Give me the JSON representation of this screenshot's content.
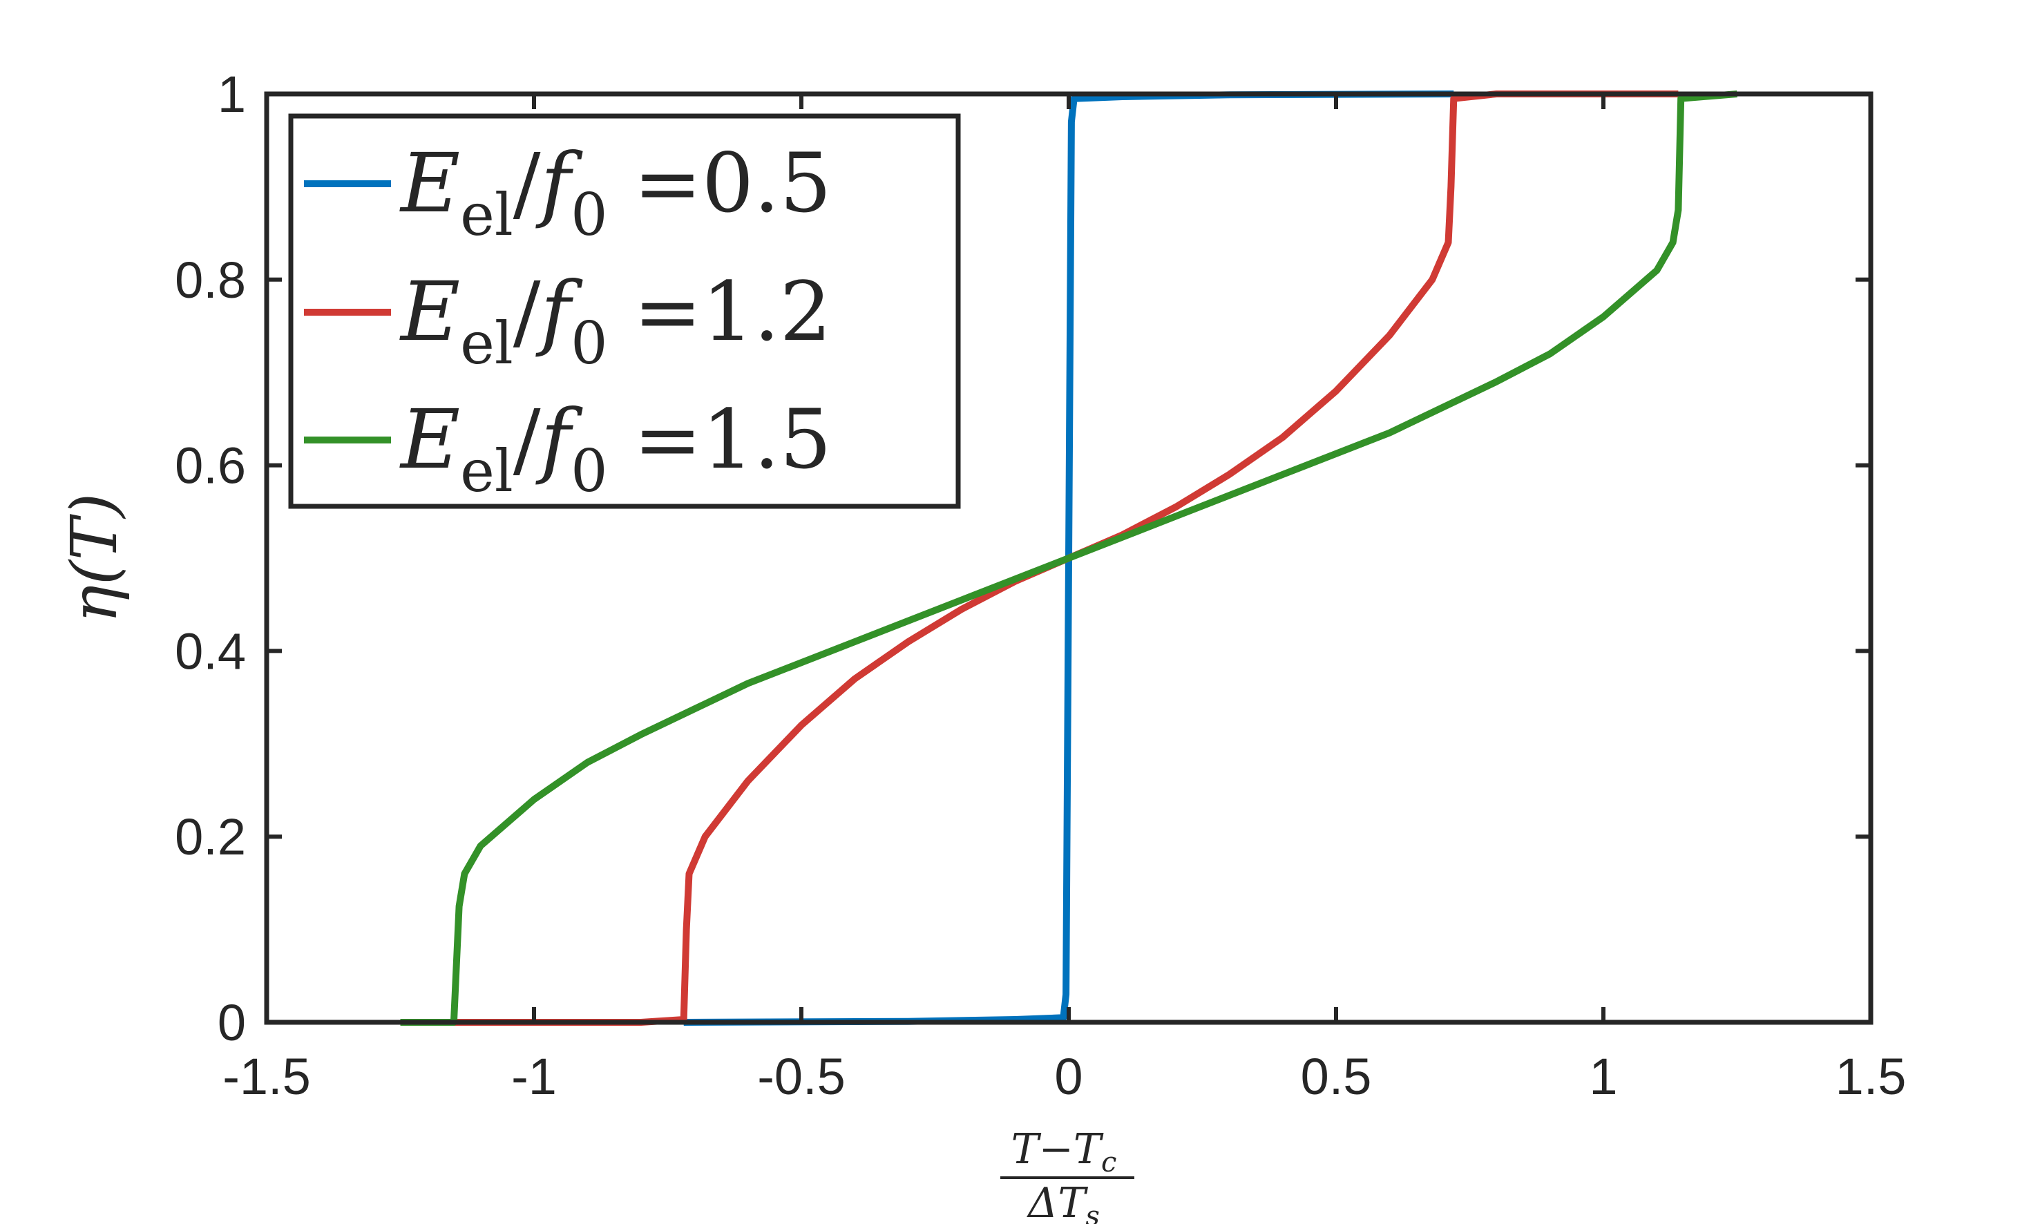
{
  "chart_data": {
    "type": "line",
    "title": "",
    "xlabel": {
      "numerator": "T−T",
      "numerator_sub": "c",
      "denominator": "ΔT",
      "denominator_sub": "s"
    },
    "ylabel": {
      "symbol": "η",
      "argument": "(T)"
    },
    "xlim": [
      -1.5,
      1.5
    ],
    "ylim": [
      0,
      1
    ],
    "xticks": [
      -1.5,
      -1,
      -0.5,
      0,
      0.5,
      1,
      1.5
    ],
    "xtick_labels": [
      "-1.5",
      "-1",
      "-0.5",
      "0",
      "0.5",
      "1",
      "1.5"
    ],
    "yticks": [
      0,
      0.2,
      0.4,
      0.6,
      0.8,
      1
    ],
    "ytick_labels": [
      "0",
      "0.2",
      "0.4",
      "0.6",
      "0.8",
      "1"
    ],
    "grid": false,
    "legend_position": "top-left",
    "series": [
      {
        "name": "E_el/f_0 =0.5",
        "label": {
          "symbol": "E",
          "sub": "el",
          "mid": "/",
          "f": "f",
          "fsub": "0",
          "value": "=0.5"
        },
        "color": "#0072BD",
        "points": [
          [
            -0.72,
            0.0
          ],
          [
            -0.3,
            0.001
          ],
          [
            -0.1,
            0.003
          ],
          [
            -0.01,
            0.005
          ],
          [
            -0.005,
            0.03
          ],
          [
            0.0,
            0.5
          ],
          [
            0.005,
            0.97
          ],
          [
            0.01,
            0.995
          ],
          [
            0.1,
            0.997
          ],
          [
            0.3,
            0.999
          ],
          [
            0.72,
            1.0
          ]
        ]
      },
      {
        "name": "E_el/f_0 =1.2",
        "label": {
          "symbol": "E",
          "sub": "el",
          "mid": "/",
          "f": "f",
          "fsub": "0",
          "value": "=1.2"
        },
        "color": "#D03A34",
        "points": [
          [
            -1.15,
            0.0
          ],
          [
            -0.8,
            0.0
          ],
          [
            -0.72,
            0.003
          ],
          [
            -0.715,
            0.1
          ],
          [
            -0.71,
            0.16
          ],
          [
            -0.68,
            0.2
          ],
          [
            -0.6,
            0.26
          ],
          [
            -0.5,
            0.32
          ],
          [
            -0.4,
            0.37
          ],
          [
            -0.3,
            0.41
          ],
          [
            -0.2,
            0.445
          ],
          [
            -0.1,
            0.475
          ],
          [
            0.0,
            0.5
          ],
          [
            0.1,
            0.525
          ],
          [
            0.2,
            0.555
          ],
          [
            0.3,
            0.59
          ],
          [
            0.4,
            0.63
          ],
          [
            0.5,
            0.68
          ],
          [
            0.6,
            0.74
          ],
          [
            0.68,
            0.8
          ],
          [
            0.71,
            0.84
          ],
          [
            0.715,
            0.9
          ],
          [
            0.72,
            0.995
          ],
          [
            0.8,
            1.0
          ],
          [
            1.14,
            1.0
          ]
        ]
      },
      {
        "name": "E_el/f_0 =1.5",
        "label": {
          "symbol": "E",
          "sub": "el",
          "mid": "/",
          "f": "f",
          "fsub": "0",
          "value": "=1.5"
        },
        "color": "#339128",
        "points": [
          [
            -1.25,
            0.0
          ],
          [
            -1.15,
            0.0
          ],
          [
            -1.14,
            0.125
          ],
          [
            -1.13,
            0.16
          ],
          [
            -1.1,
            0.19
          ],
          [
            -1.0,
            0.24
          ],
          [
            -0.9,
            0.28
          ],
          [
            -0.8,
            0.31
          ],
          [
            -0.6,
            0.365
          ],
          [
            -0.4,
            0.41
          ],
          [
            -0.2,
            0.455
          ],
          [
            0.0,
            0.5
          ],
          [
            0.2,
            0.545
          ],
          [
            0.4,
            0.59
          ],
          [
            0.6,
            0.635
          ],
          [
            0.8,
            0.69
          ],
          [
            0.9,
            0.72
          ],
          [
            1.0,
            0.76
          ],
          [
            1.1,
            0.81
          ],
          [
            1.13,
            0.84
          ],
          [
            1.14,
            0.875
          ],
          [
            1.145,
            0.995
          ],
          [
            1.25,
            1.0
          ]
        ]
      }
    ]
  }
}
